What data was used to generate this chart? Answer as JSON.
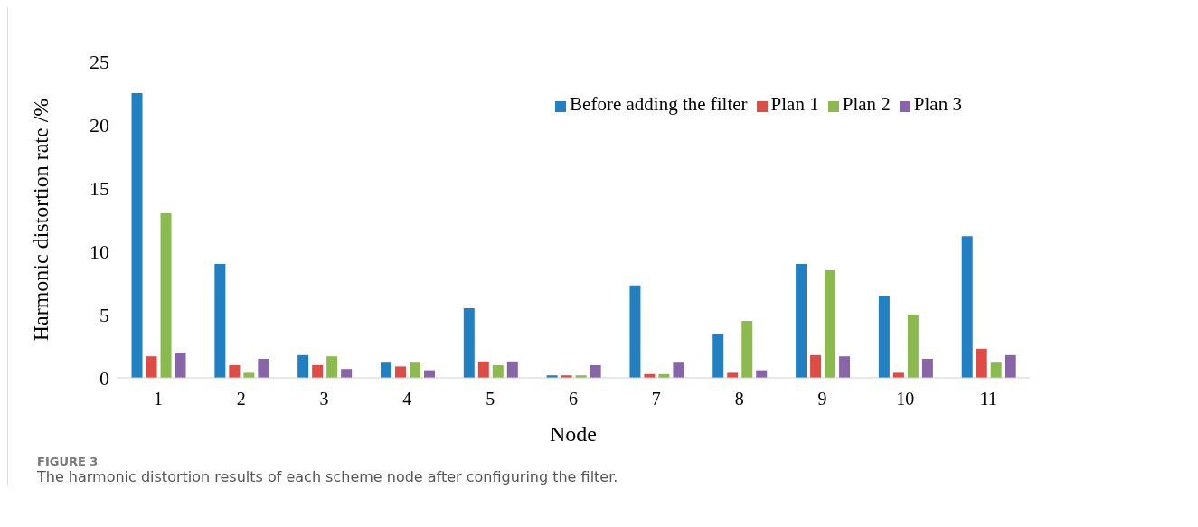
{
  "chart_data": {
    "type": "bar",
    "xlabel": "Node",
    "ylabel": "Harmonic distortion rate /%",
    "categories": [
      "1",
      "2",
      "3",
      "4",
      "5",
      "6",
      "7",
      "8",
      "9",
      "10",
      "11"
    ],
    "series": [
      {
        "name": "Before adding the filter",
        "color": "#2180c2",
        "values": [
          22.5,
          9.0,
          1.8,
          1.2,
          5.5,
          0.2,
          7.3,
          3.5,
          9.0,
          6.5,
          11.2
        ]
      },
      {
        "name": "Plan 1",
        "color": "#de4c45",
        "values": [
          1.7,
          1.0,
          1.0,
          0.9,
          1.3,
          0.2,
          0.3,
          0.4,
          1.8,
          0.4,
          2.3
        ]
      },
      {
        "name": "Plan 2",
        "color": "#8cba4e",
        "values": [
          13.0,
          0.4,
          1.7,
          1.2,
          1.0,
          0.2,
          0.3,
          4.5,
          8.5,
          5.0,
          1.2
        ]
      },
      {
        "name": "Plan 3",
        "color": "#8865a8",
        "values": [
          2.0,
          1.5,
          0.7,
          0.6,
          1.3,
          1.0,
          1.2,
          0.6,
          1.7,
          1.5,
          1.8
        ]
      }
    ],
    "ylim": [
      0,
      25
    ],
    "yticks": [
      0,
      5,
      10,
      15,
      20,
      25
    ],
    "grid": false,
    "legend": "top",
    "annotations": [
      "FIGURE 3",
      "The harmonic distortion results of each scheme node after configuring the filter."
    ]
  }
}
